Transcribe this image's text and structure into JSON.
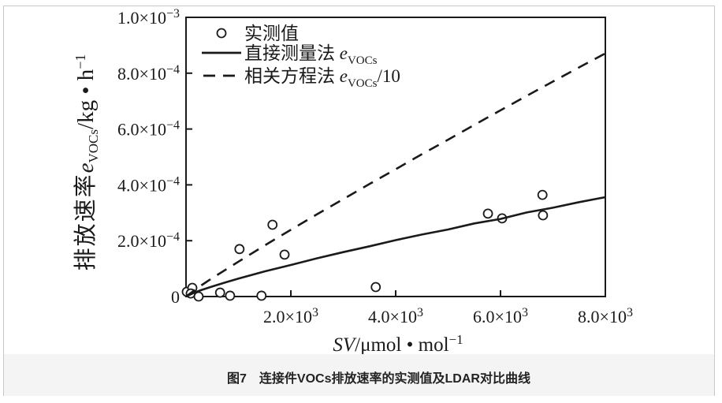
{
  "page": {
    "background": "#ffffff",
    "border_color": "#c9c9c9",
    "caption_bar_color": "#f4f4f4",
    "ink": "#1a1a1a"
  },
  "caption": "图7　连接件VOCs排放速率的实测值及LDAR对比曲线",
  "chart_data": {
    "type": "scatter",
    "title": "",
    "xlabel": {
      "sym": "SV",
      "unit": "/μmol • mol",
      "sup": "−1"
    },
    "ylabel": {
      "prefix": "排放速率",
      "sym": "e",
      "sub": "VOCs",
      "unit": "/kg • h",
      "sup": "−1"
    },
    "xlim": [
      0,
      8000
    ],
    "ylim": [
      0,
      0.001
    ],
    "grid": false,
    "legend_position": "top-left-inside",
    "x_ticks": [
      {
        "v": 2000,
        "label": "2.0×10^3"
      },
      {
        "v": 4000,
        "label": "4.0×10^3"
      },
      {
        "v": 6000,
        "label": "6.0×10^3"
      },
      {
        "v": 8000,
        "label": "8.0×10^3"
      }
    ],
    "y_ticks": [
      {
        "v": 0,
        "label": "0"
      },
      {
        "v": 0.0002,
        "label": "2.0×10^−4"
      },
      {
        "v": 0.0004,
        "label": "4.0×10^−4"
      },
      {
        "v": 0.0006,
        "label": "6.0×10^−4"
      },
      {
        "v": 0.0008,
        "label": "8.0×10^−4"
      },
      {
        "v": 0.001,
        "label": "1.0×10^−3"
      }
    ],
    "legend": [
      {
        "marker": "circle",
        "label": "实测值",
        "sym": "",
        "sub": "",
        "suffix": ""
      },
      {
        "marker": "solid",
        "label": "直接测量法 ",
        "sym": "e",
        "sub": "VOCs",
        "suffix": ""
      },
      {
        "marker": "dashed",
        "label": "相关方程法 ",
        "sym": "e",
        "sub": "VOCs",
        "suffix": "/10"
      }
    ],
    "series": [
      {
        "name": "实测值",
        "type": "scatter",
        "points": [
          [
            15,
            1.7e-05
          ],
          [
            120,
            3.1e-05
          ],
          [
            90,
            1.1e-05
          ],
          [
            240,
            0
          ],
          [
            650,
            1.4e-05
          ],
          [
            840,
            3e-06
          ],
          [
            1440,
            3e-06
          ],
          [
            1020,
            0.00017
          ],
          [
            1650,
            0.000257
          ],
          [
            1880,
            0.00015
          ],
          [
            3620,
            3.4e-05
          ],
          [
            5760,
            0.000297
          ],
          [
            6030,
            0.00028
          ],
          [
            6800,
            0.000364
          ],
          [
            6810,
            0.000291
          ]
        ]
      },
      {
        "name": "直接测量法",
        "type": "line",
        "style": "solid",
        "points": [
          [
            0,
            0
          ],
          [
            150,
            1.34e-05
          ],
          [
            300,
            2.37e-05
          ],
          [
            500,
            3.6e-05
          ],
          [
            750,
            5.05e-05
          ],
          [
            1000,
            6.4e-05
          ],
          [
            1500,
            9e-05
          ],
          [
            2000,
            0.000113
          ],
          [
            2500,
            0.000137
          ],
          [
            3000,
            0.000159
          ],
          [
            3500,
            0.00018
          ],
          [
            4000,
            0.000202
          ],
          [
            4500,
            0.000222
          ],
          [
            5000,
            0.00024
          ],
          [
            5500,
            0.000262
          ],
          [
            6000,
            0.000278
          ],
          [
            6500,
            0.000301
          ],
          [
            7000,
            0.000318
          ],
          [
            7500,
            0.000338
          ],
          [
            8000,
            0.000356
          ]
        ]
      },
      {
        "name": "相关方程法",
        "type": "line",
        "style": "dashed",
        "points": [
          [
            0,
            0
          ],
          [
            150,
            2.1e-05
          ],
          [
            300,
            4.1e-05
          ],
          [
            500,
            6.6e-05
          ],
          [
            1000,
            0.000125
          ],
          [
            1500,
            0.000183
          ],
          [
            2000,
            0.000239
          ],
          [
            2500,
            0.000295
          ],
          [
            3000,
            0.000349
          ],
          [
            3500,
            0.000403
          ],
          [
            4000,
            0.000456
          ],
          [
            4500,
            0.00051
          ],
          [
            5000,
            0.000562
          ],
          [
            5500,
            0.000615
          ],
          [
            6000,
            0.000667
          ],
          [
            6500,
            0.000719
          ],
          [
            7000,
            0.00077
          ],
          [
            7500,
            0.000821
          ],
          [
            8000,
            0.000871
          ]
        ]
      }
    ]
  }
}
